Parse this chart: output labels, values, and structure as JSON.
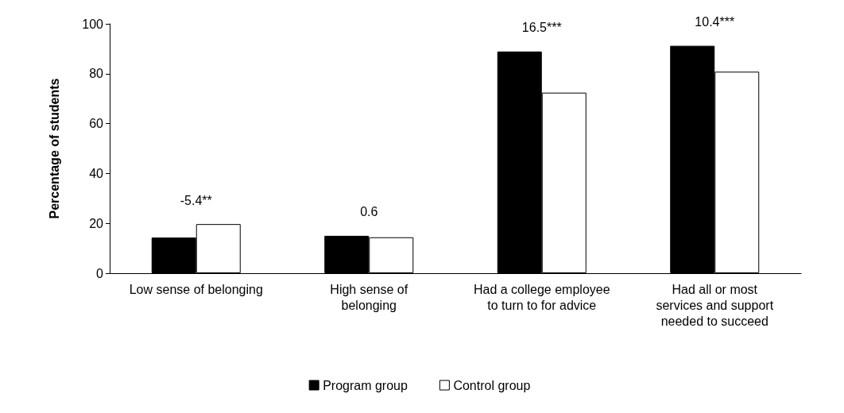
{
  "chart_data": {
    "type": "bar",
    "ylabel": "Percentage of students",
    "categories": [
      "Low sense of belonging",
      "High sense of belonging",
      "Had a college employee to turn to for advice",
      "Had all or most services and support needed to succeed"
    ],
    "series": [
      {
        "name": "Program group",
        "color": "#000000",
        "values": [
          14.3,
          15.0,
          88.9,
          91.2
        ]
      },
      {
        "name": "Control group",
        "color": "#ffffff",
        "values": [
          19.7,
          14.4,
          72.4,
          80.8
        ]
      }
    ],
    "annotations": [
      "-5.4**",
      "0.6",
      "16.5***",
      "10.4***"
    ],
    "ylim": [
      0,
      100
    ],
    "yticks": [
      0,
      20,
      40,
      60,
      80,
      100
    ],
    "grid": false,
    "legend": "bottom"
  }
}
